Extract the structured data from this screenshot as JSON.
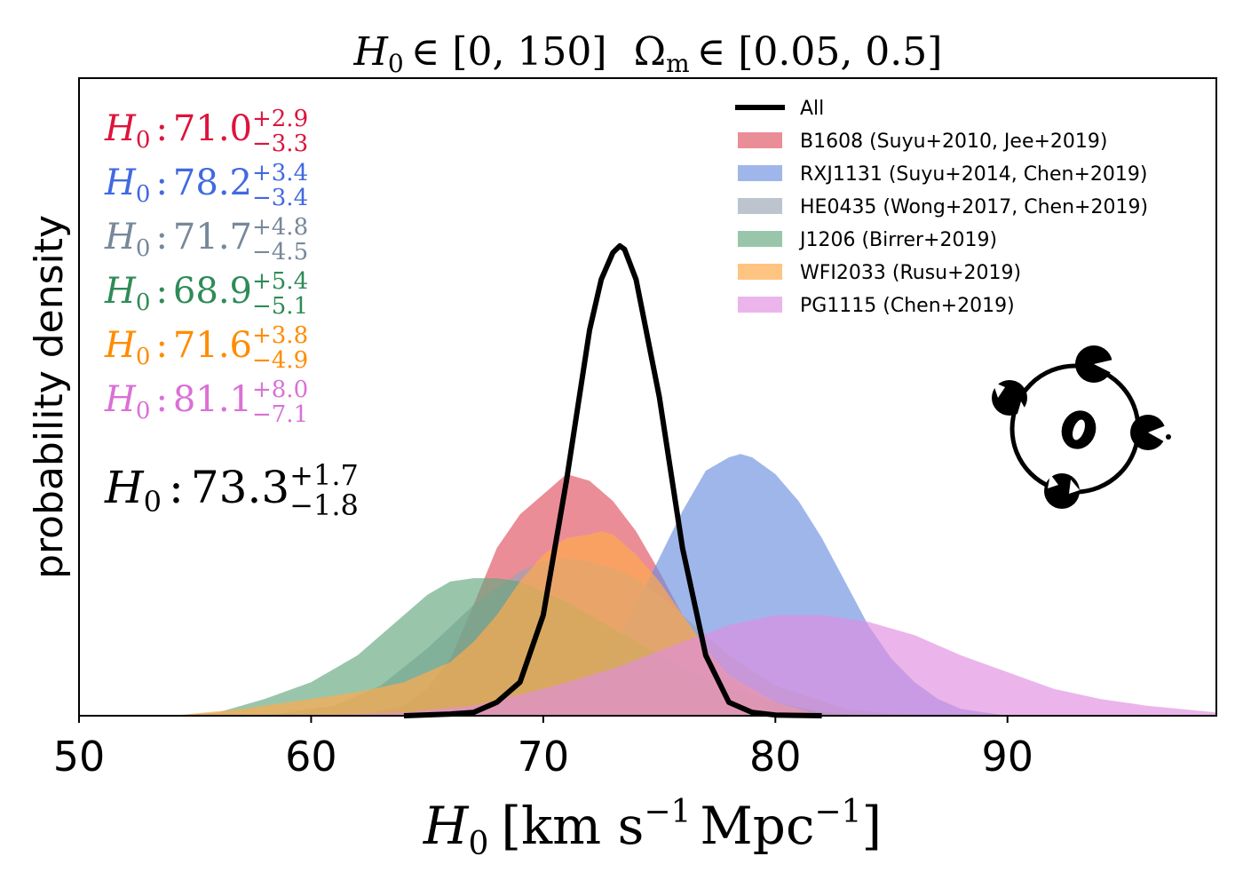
{
  "chart_data": {
    "type": "area",
    "title": {
      "h_symbol": "H",
      "h_sub": "0",
      "h_range": "∈ [0, 150]",
      "om_symbol": "Ω",
      "om_sub": "m",
      "om_range": "∈ [0.05, 0.5]"
    },
    "xlabel": {
      "symbol": "H",
      "sub": "0",
      "open": "[",
      "unit1": "km s",
      "exp1": "−1",
      "unit2": "Mpc",
      "exp2": "−1",
      "close": "]"
    },
    "ylabel": "probability density",
    "xlim": [
      50,
      99
    ],
    "ylim": [
      0,
      0.19
    ],
    "xticks": [
      "50",
      "60",
      "70",
      "80",
      "90"
    ],
    "xtick_values": [
      50,
      60,
      70,
      80,
      90
    ],
    "legend_position": "top-right",
    "series": [
      {
        "name": "B1608 (Suyu+2010, Jee+2019)",
        "color": "#e0505f",
        "opacity": 0.65,
        "value": "71.0",
        "plus": "+2.9",
        "minus": "−3.3",
        "label_color": "#dc143c",
        "x": [
          62,
          64,
          65,
          66,
          67,
          68,
          69,
          70,
          71,
          72,
          73,
          74,
          75,
          76,
          77,
          78,
          80,
          82,
          84
        ],
        "y": [
          0.0,
          0.003,
          0.008,
          0.017,
          0.033,
          0.05,
          0.06,
          0.066,
          0.072,
          0.07,
          0.064,
          0.055,
          0.043,
          0.03,
          0.019,
          0.011,
          0.003,
          0.0008,
          0.0
        ]
      },
      {
        "name": "RXJ1131 (Suyu+2014, Chen+2019)",
        "color": "#6b8fe0",
        "opacity": 0.65,
        "value": "78.2",
        "plus": "+3.4",
        "minus": "−3.4",
        "label_color": "#4169e1",
        "x": [
          68,
          70,
          72,
          73,
          74,
          75,
          76,
          77,
          78,
          78.5,
          79,
          80,
          81,
          82,
          83,
          84,
          85,
          86,
          87,
          88,
          90
        ],
        "y": [
          0.0,
          0.003,
          0.012,
          0.02,
          0.033,
          0.047,
          0.061,
          0.073,
          0.077,
          0.078,
          0.077,
          0.072,
          0.064,
          0.053,
          0.04,
          0.027,
          0.017,
          0.01,
          0.005,
          0.002,
          0.0
        ]
      },
      {
        "name": "HE0435 (Wong+2017, Chen+2019)",
        "color": "#9aa4b4",
        "opacity": 0.65,
        "value": "71.7",
        "plus": "+4.8",
        "minus": "−4.5",
        "label_color": "#778899",
        "x": [
          58,
          61,
          63,
          65,
          67,
          69,
          70,
          71,
          72,
          73,
          74,
          75,
          76,
          77,
          78,
          80,
          83,
          86
        ],
        "y": [
          0.0,
          0.003,
          0.009,
          0.02,
          0.033,
          0.043,
          0.046,
          0.047,
          0.046,
          0.044,
          0.041,
          0.036,
          0.03,
          0.024,
          0.018,
          0.009,
          0.002,
          0.0
        ]
      },
      {
        "name": "J1206 (Birrer+2019)",
        "color": "#63a87e",
        "opacity": 0.65,
        "value": "68.9",
        "plus": "+5.4",
        "minus": "−5.1",
        "label_color": "#2e8b57",
        "x": [
          54,
          56,
          58,
          60,
          62,
          63,
          64,
          65,
          66,
          67,
          68,
          69,
          70,
          71,
          72,
          73,
          74,
          75,
          76,
          78,
          80,
          82,
          84
        ],
        "y": [
          0.0,
          0.001,
          0.005,
          0.01,
          0.018,
          0.024,
          0.03,
          0.036,
          0.04,
          0.041,
          0.041,
          0.04,
          0.037,
          0.034,
          0.03,
          0.026,
          0.022,
          0.018,
          0.014,
          0.008,
          0.004,
          0.001,
          0.0
        ]
      },
      {
        "name": "WFI2033 (Rusu+2019)",
        "color": "#ffa94d",
        "opacity": 0.7,
        "value": "71.6",
        "plus": "+3.8",
        "minus": "−4.9",
        "label_color": "#ff8c00",
        "x": [
          54,
          57,
          60,
          62,
          64,
          66,
          67,
          68,
          69,
          70,
          71,
          72,
          72.5,
          73,
          74,
          75,
          76,
          77,
          78,
          80,
          82
        ],
        "y": [
          0.0,
          0.002,
          0.005,
          0.007,
          0.01,
          0.016,
          0.022,
          0.03,
          0.04,
          0.048,
          0.053,
          0.054,
          0.055,
          0.054,
          0.048,
          0.04,
          0.03,
          0.02,
          0.012,
          0.004,
          0.0
        ]
      },
      {
        "name": "PG1115 (Chen+2019)",
        "color": "#e08ee0",
        "opacity": 0.65,
        "value": "81.1",
        "plus": "+8.0",
        "minus": "−7.1",
        "label_color": "#da70d6",
        "x": [
          60,
          64,
          67,
          70,
          73,
          76,
          78,
          80,
          82,
          84,
          86,
          88,
          90,
          92,
          94,
          96,
          99
        ],
        "y": [
          0.0,
          0.001,
          0.003,
          0.008,
          0.014,
          0.022,
          0.027,
          0.03,
          0.03,
          0.028,
          0.024,
          0.018,
          0.013,
          0.008,
          0.005,
          0.003,
          0.001
        ]
      }
    ],
    "combined": {
      "name": "All",
      "color": "#000000",
      "value": "73.3",
      "plus": "+1.7",
      "minus": "−1.8",
      "x": [
        64,
        66,
        67,
        68,
        69,
        70,
        71,
        72,
        72.5,
        73,
        73.3,
        73.5,
        74,
        75,
        76,
        77,
        78,
        79,
        80,
        82
      ],
      "y": [
        0.0,
        0.0005,
        0.001,
        0.004,
        0.01,
        0.03,
        0.07,
        0.115,
        0.13,
        0.138,
        0.14,
        0.139,
        0.13,
        0.095,
        0.05,
        0.018,
        0.004,
        0.001,
        0.0002,
        0.0
      ]
    },
    "estimate_symbol": "H",
    "estimate_sub": "0",
    "estimate_sep": ":"
  }
}
